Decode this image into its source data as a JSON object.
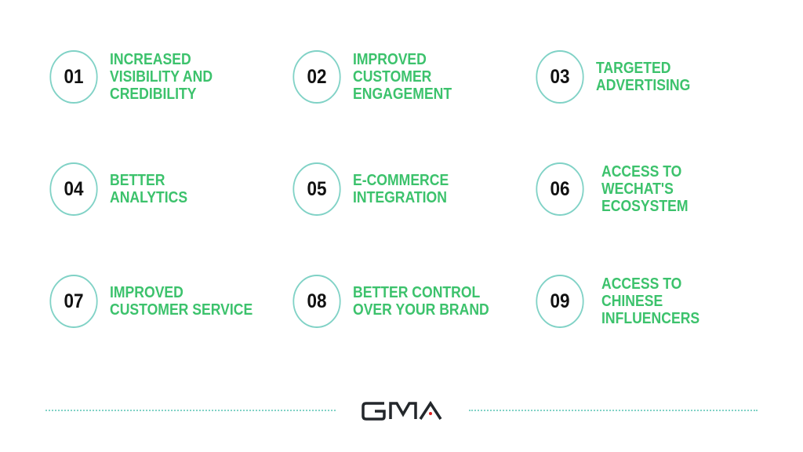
{
  "items": [
    {
      "number": "01",
      "label": "INCREASED\nVISIBILITY AND\nCREDIBILITY"
    },
    {
      "number": "02",
      "label": "IMPROVED\nCUSTOMER\nENGAGEMENT"
    },
    {
      "number": "03",
      "label": "TARGETED\nADVERTISING"
    },
    {
      "number": "04",
      "label": "BETTER\nANALYTICS"
    },
    {
      "number": "05",
      "label": "E-COMMERCE\nINTEGRATION"
    },
    {
      "number": "06",
      "label": "ACCESS TO\nWECHAT'S\nECOSYSTEM"
    },
    {
      "number": "07",
      "label": "IMPROVED\nCUSTOMER SERVICE"
    },
    {
      "number": "08",
      "label": "BETTER CONTROL\nOVER YOUR BRAND"
    },
    {
      "number": "09",
      "label": "ACCESS TO\nCHINESE\nINFLUENCERS"
    }
  ],
  "logo": {
    "text": "GMA"
  },
  "colors": {
    "accent": "#3cc26c",
    "circle": "#80d2c6",
    "logo_dot": "#e02020"
  }
}
